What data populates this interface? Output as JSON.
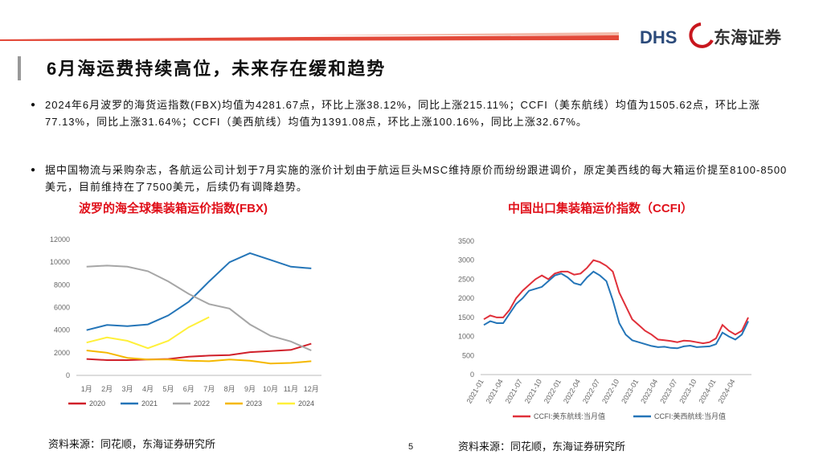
{
  "logo": {
    "en": "DHS",
    "cn": "东海证券"
  },
  "header": {
    "title": "6月海运费持续高位，未来存在缓和趋势"
  },
  "bullets": [
    "2024年6月波罗的海货运指数(FBX)均值为4281.67点，环比上涨38.12%，同比上涨215.11%；CCFI（美东航线）均值为1505.62点，环比上涨77.13%，同比上涨31.64%；CCFI（美西航线）均值为1391.08点，环比上涨100.16%，同比上涨32.67%。",
    "据中国物流与采购杂志，各航运公司计划于7月实施的涨价计划由于航运巨头MSC维持原价而纷纷跟进调价，原定美西线的每大箱运价提至8100-8500美元，目前维持在了7500美元，后续仍有调降趋势。"
  ],
  "chart_data": [
    {
      "type": "line",
      "title": "波罗的海全球集装箱运价指数(FBX)",
      "categories": [
        "1月",
        "2月",
        "3月",
        "4月",
        "5月",
        "6月",
        "7月",
        "8月",
        "9月",
        "10月",
        "11月",
        "12月"
      ],
      "ylim": [
        0,
        12000
      ],
      "yticks": [
        0,
        2000,
        4000,
        6000,
        8000,
        10000,
        12000
      ],
      "grid": false,
      "legend": "bottom",
      "series": [
        {
          "name": "2020",
          "color": "#d0202a",
          "values": [
            1450,
            1350,
            1350,
            1400,
            1450,
            1650,
            1750,
            1800,
            2050,
            2150,
            2250,
            2800
          ]
        },
        {
          "name": "2021",
          "color": "#2475b8",
          "values": [
            4000,
            4450,
            4350,
            4500,
            5300,
            6500,
            8300,
            10000,
            10800,
            10200,
            9600,
            9450
          ]
        },
        {
          "name": "2022",
          "color": "#a6a6a6",
          "values": [
            9600,
            9700,
            9600,
            9200,
            8300,
            7200,
            6300,
            5900,
            4500,
            3500,
            3000,
            2200
          ]
        },
        {
          "name": "2023",
          "color": "#f5b800",
          "values": [
            2200,
            2000,
            1550,
            1400,
            1400,
            1300,
            1250,
            1400,
            1300,
            1050,
            1100,
            1250
          ]
        },
        {
          "name": "2024",
          "color": "#fff03a",
          "values": [
            2900,
            3350,
            3050,
            2400,
            3050,
            4250,
            5150,
            null,
            null,
            null,
            null,
            null
          ]
        }
      ]
    },
    {
      "type": "line",
      "title": "中国出口集装箱运价指数（CCFI）",
      "categories": [
        "2021-01",
        null,
        null,
        "2021-04",
        null,
        null,
        "2021-07",
        null,
        null,
        "2021-10",
        null,
        null,
        "2022-01",
        null,
        null,
        "2022-04",
        null,
        null,
        "2022-07",
        null,
        null,
        "2022-10",
        null,
        null,
        "2023-01",
        null,
        null,
        "2023-04",
        null,
        null,
        "2023-07",
        null,
        null,
        "2023-10",
        null,
        null,
        "2024-01",
        null,
        null,
        "2024-04",
        null,
        null
      ],
      "ylim": [
        0,
        3500
      ],
      "yticks": [
        0,
        500,
        1000,
        1500,
        2000,
        2500,
        3000,
        3500
      ],
      "grid": false,
      "legend": "bottom",
      "series": [
        {
          "name": "CCFI:美东航线:当月值",
          "color": "#e0303a",
          "values": [
            1450,
            1550,
            1500,
            1500,
            1700,
            2000,
            2200,
            2350,
            2500,
            2600,
            2500,
            2650,
            2700,
            2700,
            2620,
            2650,
            2800,
            3000,
            2950,
            2850,
            2700,
            2150,
            1800,
            1450,
            1300,
            1150,
            1050,
            920,
            900,
            880,
            850,
            890,
            880,
            850,
            820,
            850,
            950,
            1300,
            1150,
            1050,
            1150,
            1500
          ]
        },
        {
          "name": "CCFI:美西航线:当月值",
          "color": "#2475b8",
          "values": [
            1300,
            1400,
            1350,
            1350,
            1600,
            1850,
            2000,
            2200,
            2250,
            2300,
            2450,
            2600,
            2650,
            2550,
            2400,
            2350,
            2550,
            2700,
            2600,
            2450,
            1950,
            1350,
            1050,
            900,
            850,
            800,
            750,
            720,
            730,
            700,
            690,
            740,
            760,
            720,
            730,
            740,
            800,
            1100,
            1000,
            920,
            1050,
            1400
          ]
        }
      ]
    }
  ],
  "sources": [
    "资料来源：同花顺，东海证券研究所",
    "资料来源：同花顺，东海证券研究所"
  ],
  "page_number": "5"
}
